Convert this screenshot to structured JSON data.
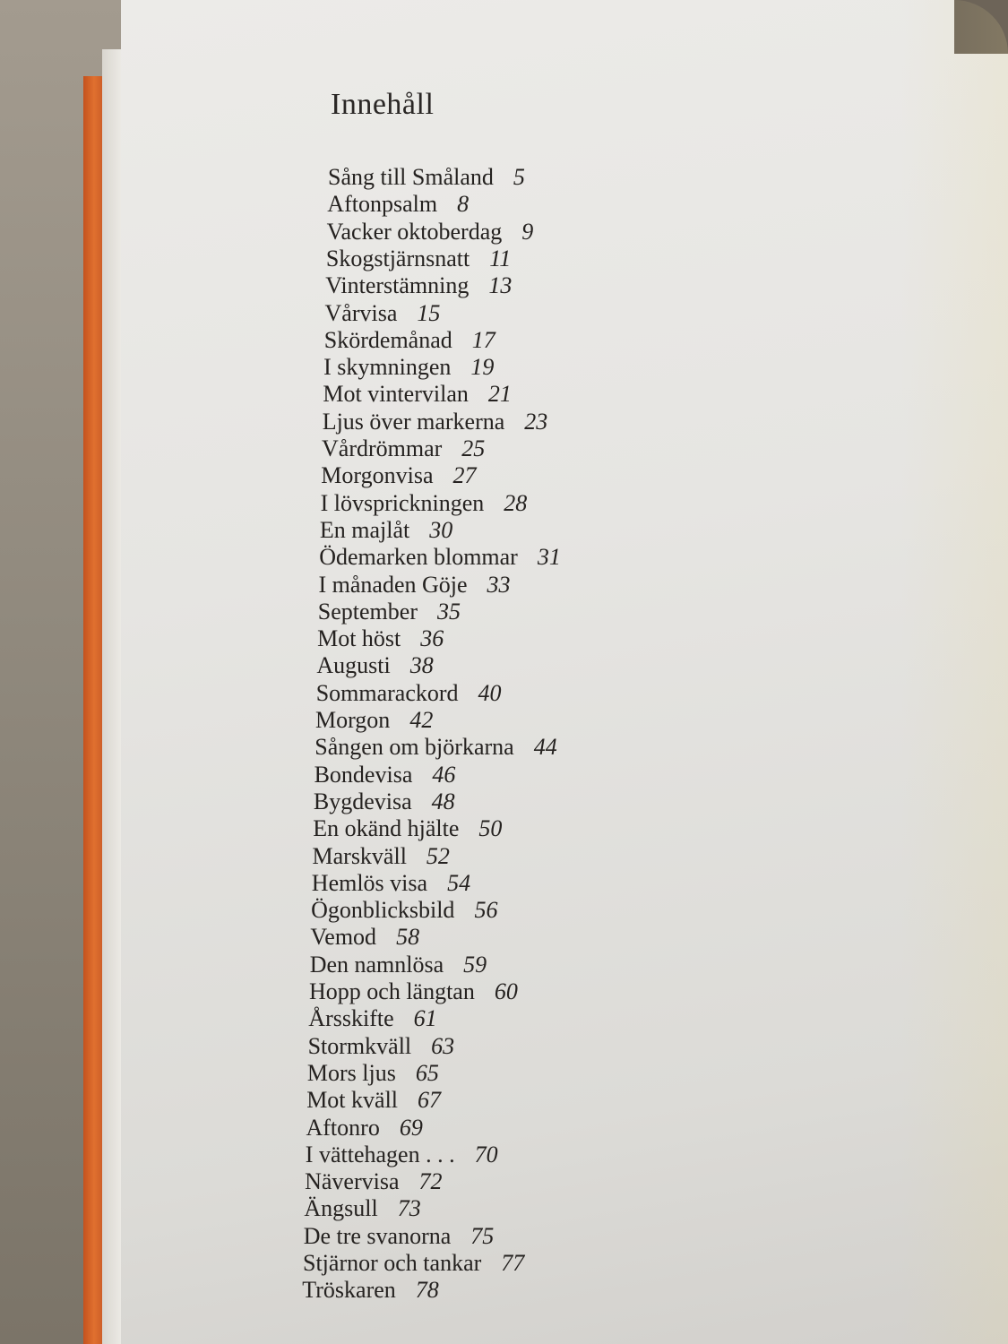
{
  "title": "Innehåll",
  "entries": [
    {
      "title": "Sång till Småland",
      "page": "5"
    },
    {
      "title": "Aftonpsalm",
      "page": "8"
    },
    {
      "title": "Vacker oktoberdag",
      "page": "9"
    },
    {
      "title": "Skogstjärnsnatt",
      "page": "11"
    },
    {
      "title": "Vinterstämning",
      "page": "13"
    },
    {
      "title": "Vårvisa",
      "page": "15"
    },
    {
      "title": "Skördemånad",
      "page": "17"
    },
    {
      "title": "I skymningen",
      "page": "19"
    },
    {
      "title": "Mot vintervilan",
      "page": "21"
    },
    {
      "title": "Ljus över markerna",
      "page": "23"
    },
    {
      "title": "Vårdrömmar",
      "page": "25"
    },
    {
      "title": "Morgonvisa",
      "page": "27"
    },
    {
      "title": "I lövsprickningen",
      "page": "28"
    },
    {
      "title": "En majlåt",
      "page": "30"
    },
    {
      "title": "Ödemarken blommar",
      "page": "31"
    },
    {
      "title": "I månaden Göje",
      "page": "33"
    },
    {
      "title": "September",
      "page": "35"
    },
    {
      "title": "Mot höst",
      "page": "36"
    },
    {
      "title": "Augusti",
      "page": "38"
    },
    {
      "title": "Sommarackord",
      "page": "40"
    },
    {
      "title": "Morgon",
      "page": "42"
    },
    {
      "title": "Sången om björkarna",
      "page": "44"
    },
    {
      "title": "Bondevisa",
      "page": "46"
    },
    {
      "title": "Bygdevisa",
      "page": "48"
    },
    {
      "title": "En okänd hjälte",
      "page": "50"
    },
    {
      "title": "Marskväll",
      "page": "52"
    },
    {
      "title": "Hemlös visa",
      "page": "54"
    },
    {
      "title": "Ögonblicksbild",
      "page": "56"
    },
    {
      "title": "Vemod",
      "page": "58"
    },
    {
      "title": "Den namnlösa",
      "page": "59"
    },
    {
      "title": "Hopp och längtan",
      "page": "60"
    },
    {
      "title": "Årsskifte",
      "page": "61"
    },
    {
      "title": "Stormkväll",
      "page": "63"
    },
    {
      "title": "Mors ljus",
      "page": "65"
    },
    {
      "title": "Mot kväll",
      "page": "67"
    },
    {
      "title": "Aftonro",
      "page": "69"
    },
    {
      "title": "I vättehagen . . .",
      "page": "70"
    },
    {
      "title": "Nävervisa",
      "page": "72"
    },
    {
      "title": "Ängsull",
      "page": "73"
    },
    {
      "title": "De tre svanorna",
      "page": "75"
    },
    {
      "title": "Stjärnor och tankar",
      "page": "77"
    },
    {
      "title": "Tröskaren",
      "page": "78"
    }
  ]
}
